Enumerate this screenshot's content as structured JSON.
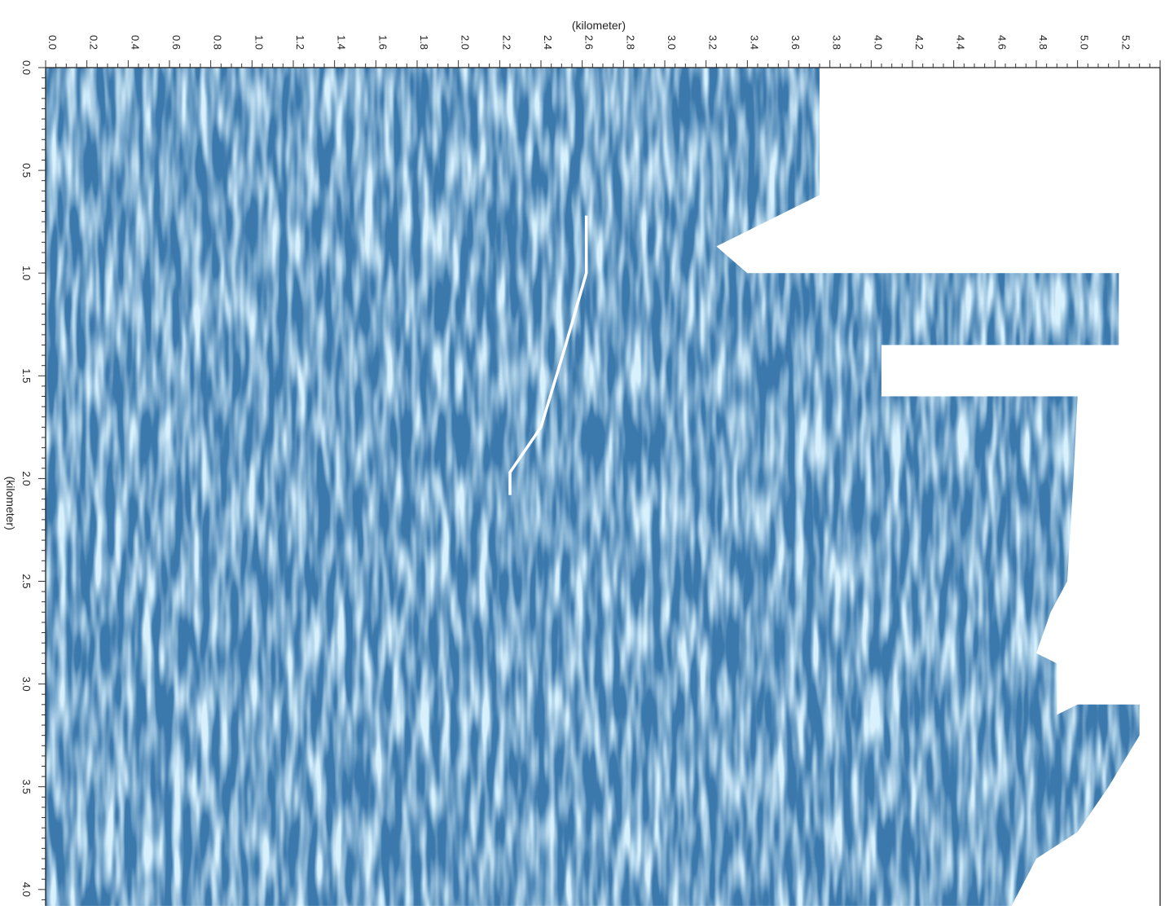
{
  "chart_data": {
    "type": "heatmap",
    "title": "",
    "xlabel": "(kilometer)",
    "ylabel": "(kilometer)",
    "x_axis_position": "top",
    "y_axis_direction": "down",
    "xlim": [
      0.0,
      5.4
    ],
    "ylim": [
      0.0,
      4.08
    ],
    "x_ticks": [
      "0.0",
      "0.2",
      "0.4",
      "0.6",
      "0.8",
      "1.0",
      "1.2",
      "1.4",
      "1.6",
      "1.8",
      "2.0",
      "2.2",
      "2.4",
      "2.6",
      "2.8",
      "3.0",
      "3.2",
      "3.4",
      "3.6",
      "3.8",
      "4.0",
      "4.2",
      "4.4",
      "4.6",
      "4.8",
      "5.0",
      "5.2"
    ],
    "y_ticks": [
      "0.0",
      "0.5",
      "1.0",
      "1.5",
      "2.0",
      "2.5",
      "3.0",
      "3.5",
      "4.0"
    ],
    "grid": false,
    "colormap": [
      "#d8f1fd",
      "#3a78ac"
    ],
    "data_region_boundary": [
      [
        0.0,
        0.0
      ],
      [
        3.75,
        0.0
      ],
      [
        3.75,
        0.62
      ],
      [
        3.25,
        0.87
      ],
      [
        3.4,
        1.0
      ],
      [
        5.2,
        1.0
      ],
      [
        5.2,
        1.35
      ],
      [
        4.05,
        1.35
      ],
      [
        4.05,
        1.6
      ],
      [
        5.0,
        1.6
      ],
      [
        4.98,
        2.0
      ],
      [
        4.95,
        2.5
      ],
      [
        4.87,
        2.65
      ],
      [
        4.8,
        2.85
      ],
      [
        4.9,
        2.9
      ],
      [
        4.9,
        3.15
      ],
      [
        5.0,
        3.1
      ],
      [
        5.3,
        3.1
      ],
      [
        5.3,
        3.25
      ],
      [
        5.15,
        3.5
      ],
      [
        5.0,
        3.72
      ],
      [
        4.8,
        3.85
      ],
      [
        4.68,
        4.08
      ],
      [
        0.0,
        4.08
      ]
    ],
    "fault_line": [
      [
        2.62,
        0.72
      ],
      [
        2.62,
        1.0
      ],
      [
        2.52,
        1.35
      ],
      [
        2.4,
        1.75
      ],
      [
        2.25,
        1.97
      ],
      [
        2.25,
        2.08
      ]
    ]
  }
}
